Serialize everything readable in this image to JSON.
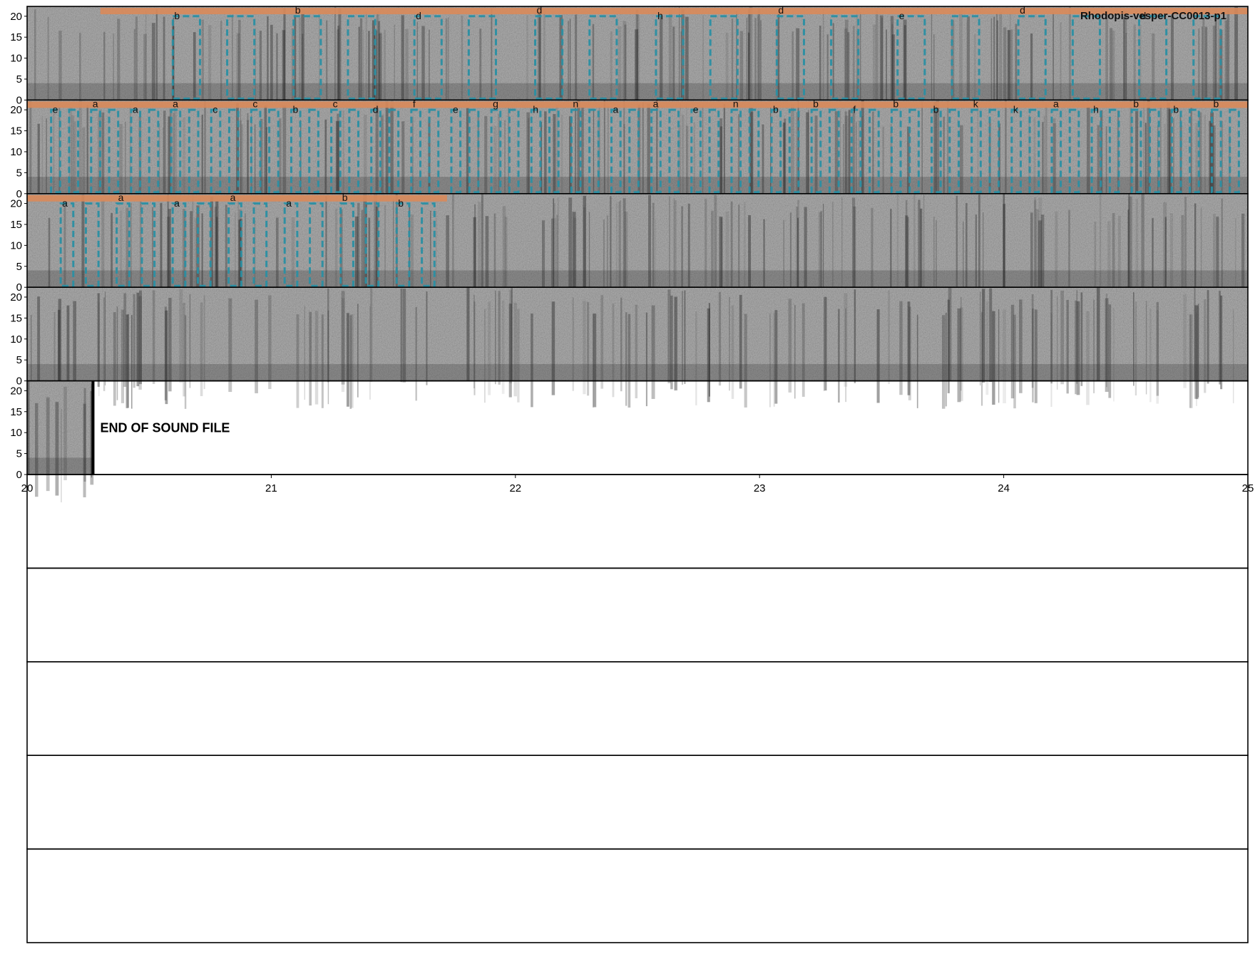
{
  "chart_data": {
    "type": "spectrogram",
    "title": "Rhodopis-vesper-CC0013-p1",
    "end_label": "END OF SOUND FILE",
    "ylim": [
      0,
      22
    ],
    "y_ticks": [
      "0",
      "5",
      "10",
      "15",
      "20"
    ],
    "x_ticks": [
      "20",
      "21",
      "22",
      "23",
      "24",
      "25"
    ],
    "xlim": [
      20,
      25
    ],
    "colors": {
      "phrase_bar": "#d9895a",
      "syllable_box": "#2a8fa3",
      "spectrogram_base": "#8a8a8a"
    },
    "rows": [
      {
        "index": 1,
        "type": "spectrogram",
        "annotated": true,
        "phrase_span": [
          0.3,
          5.0
        ],
        "labels": [
          "b",
          "b",
          "d",
          "d",
          "h",
          "d",
          "e",
          "d",
          "d"
        ]
      },
      {
        "index": 2,
        "type": "spectrogram",
        "annotated": true,
        "phrase_span": [
          0.0,
          5.0
        ],
        "labels": [
          "e",
          "a",
          "a",
          "a",
          "c",
          "c",
          "b",
          "c",
          "d",
          "f",
          "e",
          "g",
          "h",
          "n",
          "a",
          "a",
          "e",
          "n",
          "b",
          "b",
          "f",
          "b",
          "b",
          "k",
          "k",
          "a",
          "h",
          "b",
          "b",
          "b"
        ]
      },
      {
        "index": 3,
        "type": "spectrogram",
        "annotated": true,
        "phrase_span": [
          0.0,
          1.72
        ],
        "labels": [
          "a",
          "a",
          "a",
          "a",
          "a",
          "b",
          "b"
        ]
      },
      {
        "index": 4,
        "type": "spectrogram",
        "annotated": false
      },
      {
        "index": 5,
        "type": "end",
        "spectrogram_span": [
          0.0,
          0.27
        ]
      },
      {
        "index": 6,
        "type": "empty"
      },
      {
        "index": 7,
        "type": "empty"
      },
      {
        "index": 8,
        "type": "empty"
      },
      {
        "index": 9,
        "type": "empty"
      },
      {
        "index": 10,
        "type": "empty"
      }
    ]
  }
}
